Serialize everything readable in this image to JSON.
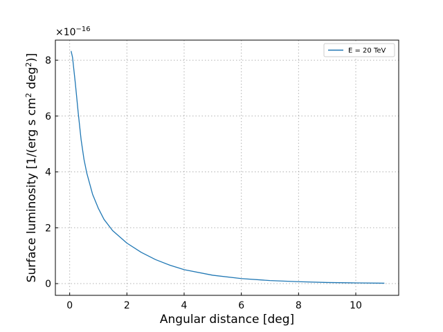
{
  "chart_data": {
    "type": "line",
    "xlabel": "Angular distance [deg]",
    "ylabel": {
      "prefix": "Surface luminosity [1/(erg s cm",
      "sup1": "2",
      "mid": " deg",
      "sup2": "2",
      "suffix": ")]"
    },
    "y_offset": {
      "base": "×10",
      "exponent": "−16"
    },
    "xlim": [
      -0.5,
      11.5
    ],
    "ylim": [
      -0.42,
      8.72
    ],
    "x_ticks": [
      0,
      2,
      4,
      6,
      8,
      10
    ],
    "y_ticks": [
      0,
      2,
      4,
      6,
      8
    ],
    "grid": true,
    "grid_style": "dotted",
    "legend_position": "top-right",
    "series": [
      {
        "name": "E = 20 TeV",
        "color": "#1f77b4",
        "x": [
          0.05,
          0.1,
          0.2,
          0.3,
          0.4,
          0.5,
          0.6,
          0.8,
          1.0,
          1.2,
          1.5,
          2.0,
          2.5,
          3.0,
          3.5,
          4.0,
          5.0,
          6.0,
          7.0,
          8.0,
          9.0,
          10.0,
          11.0
        ],
        "y": [
          8.33,
          8.1,
          7.15,
          6.1,
          5.15,
          4.45,
          3.95,
          3.2,
          2.7,
          2.3,
          1.9,
          1.45,
          1.12,
          0.86,
          0.66,
          0.5,
          0.3,
          0.18,
          0.11,
          0.07,
          0.04,
          0.025,
          0.015
        ]
      }
    ]
  }
}
